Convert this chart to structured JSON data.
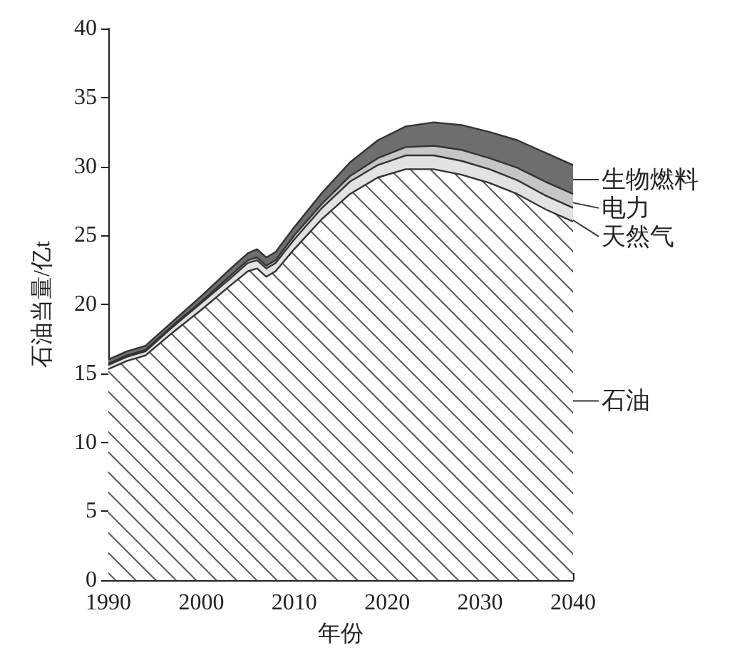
{
  "chart_data": {
    "type": "area",
    "stacked": true,
    "xlabel": "年份",
    "ylabel": "石油当量/亿t",
    "x": [
      1990,
      1992,
      1994,
      1997,
      2000,
      2003,
      2005,
      2006,
      2007,
      2008,
      2010,
      2013,
      2016,
      2019,
      2022,
      2025,
      2028,
      2031,
      2034,
      2037,
      2040
    ],
    "series": [
      {
        "name": "石油",
        "color": "#ffffff",
        "values": [
          15.3,
          15.9,
          16.3,
          18.0,
          19.6,
          21.3,
          22.4,
          22.6,
          22.0,
          22.4,
          24.0,
          26.2,
          28.0,
          29.2,
          29.8,
          29.8,
          29.4,
          28.8,
          28.0,
          26.9,
          26.0
        ]
      },
      {
        "name": "天然气",
        "color": "#e2e2e2",
        "values": [
          0.3,
          0.3,
          0.3,
          0.4,
          0.5,
          0.5,
          0.6,
          0.6,
          0.6,
          0.6,
          0.7,
          0.8,
          0.9,
          0.9,
          1.0,
          1.0,
          1.0,
          1.0,
          1.0,
          1.0,
          1.0
        ]
      },
      {
        "name": "电力",
        "color": "#c6c6c6",
        "values": [
          0.1,
          0.1,
          0.1,
          0.1,
          0.1,
          0.2,
          0.2,
          0.2,
          0.2,
          0.2,
          0.3,
          0.3,
          0.4,
          0.5,
          0.6,
          0.7,
          0.8,
          0.8,
          0.9,
          1.0,
          1.0
        ]
      },
      {
        "name": "生物燃料",
        "color": "#6e6e6e",
        "values": [
          0.3,
          0.3,
          0.3,
          0.3,
          0.4,
          0.5,
          0.5,
          0.6,
          0.6,
          0.6,
          0.6,
          0.8,
          1.0,
          1.3,
          1.5,
          1.7,
          1.8,
          1.9,
          2.0,
          2.1,
          2.1
        ]
      }
    ],
    "xlim": [
      1990,
      2040
    ],
    "xticks": [
      1990,
      2000,
      2010,
      2020,
      2030,
      2040
    ],
    "ylim": [
      0,
      40
    ],
    "yticks": [
      0,
      5,
      10,
      15,
      20,
      25,
      30,
      35,
      40
    ],
    "grid": false,
    "legend": "right"
  }
}
